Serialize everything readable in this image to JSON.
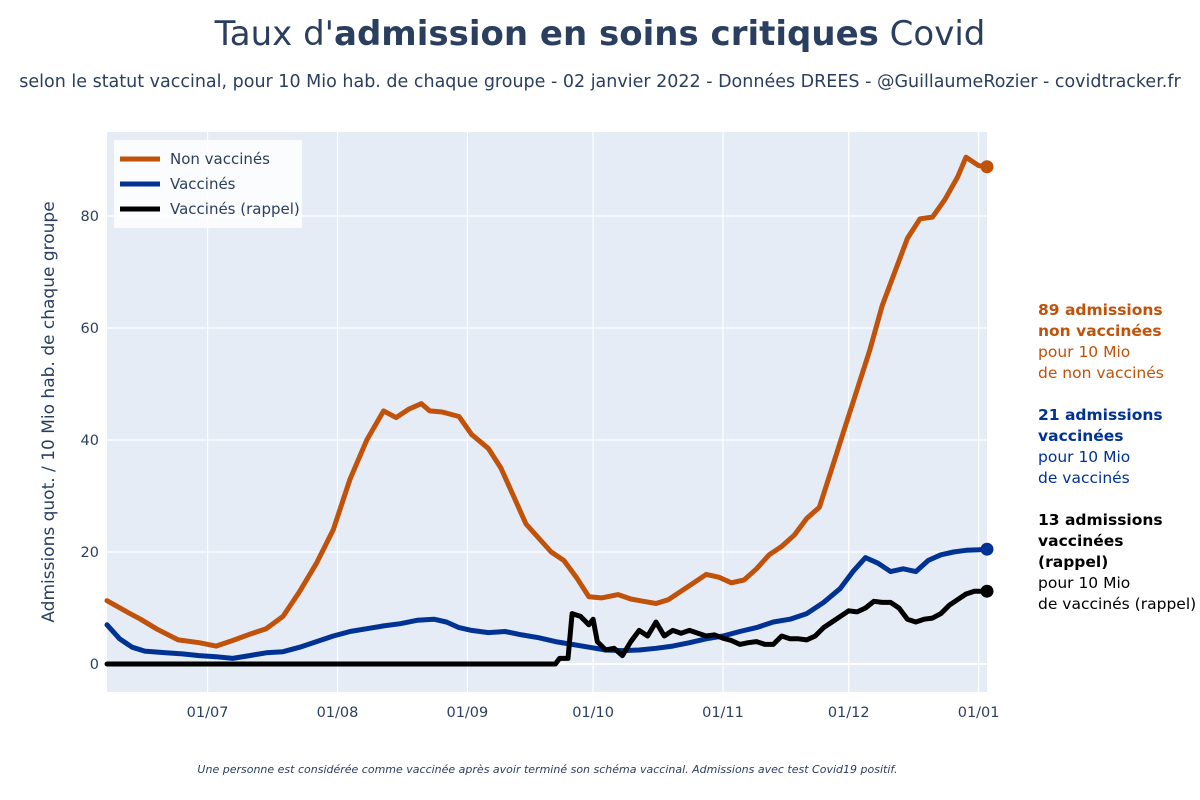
{
  "title_prefix": "Taux d'",
  "title_bold": "admission en soins critiques",
  "title_suffix": " Covid",
  "subtitle": "selon le statut vaccinal, pour 10 Mio hab. de chaque groupe - 02 janvier 2022 - Données DREES - @GuillaumeRozier - covidtracker.fr",
  "footnote": "Une personne est considérée comme vaccinée après avoir terminé son schéma vaccinal. Admissions avec test Covid19 positif.",
  "annotations": [
    {
      "bold1": "89 admissions",
      "bold2": "non vaccinées",
      "line1": "pour 10 Mio",
      "line2": "de non vaccinés",
      "color": "#c0520a"
    },
    {
      "bold1": "21 admissions",
      "bold2": "vaccinées",
      "line1": "pour 10 Mio",
      "line2": "de vaccinés",
      "color": "#003293"
    },
    {
      "bold1": "13 admissions",
      "bold2": "vaccinées (rappel)",
      "line1": "pour 10 Mio",
      "line2": "de vaccinés (rappel)",
      "color": "#000000"
    }
  ],
  "chart_data": {
    "type": "line",
    "title": "Taux d'admission en soins critiques Covid",
    "xlabel": "",
    "ylabel": "Admissions quot. / 10 Mio hab. de chaque groupe",
    "x_unit": "days since 2021-06-07",
    "xlim": [
      0,
      210
    ],
    "ylim": [
      -5,
      95
    ],
    "yticks": [
      0,
      20,
      40,
      60,
      80
    ],
    "xticks": [
      {
        "x": 24,
        "label": "01/07"
      },
      {
        "x": 55,
        "label": "01/08"
      },
      {
        "x": 86,
        "label": "01/09"
      },
      {
        "x": 116,
        "label": "01/10"
      },
      {
        "x": 147,
        "label": "01/11"
      },
      {
        "x": 177,
        "label": "01/12"
      },
      {
        "x": 208,
        "label": "01/01"
      }
    ],
    "legend": {
      "position": "top-left",
      "entries": [
        "Non vaccinés",
        "Vaccinés",
        "Vaccinés (rappel)"
      ]
    },
    "series": [
      {
        "name": "Non vaccinés",
        "color": "#c0520a",
        "points": [
          [
            0,
            11.3
          ],
          [
            5,
            9.2
          ],
          [
            8,
            8
          ],
          [
            12,
            6.2
          ],
          [
            17,
            4.3
          ],
          [
            22,
            3.8
          ],
          [
            26,
            3.2
          ],
          [
            30,
            4.2
          ],
          [
            34,
            5.3
          ],
          [
            38,
            6.3
          ],
          [
            42,
            8.5
          ],
          [
            46,
            13
          ],
          [
            50,
            18
          ],
          [
            54,
            24
          ],
          [
            58,
            33
          ],
          [
            62,
            40
          ],
          [
            66,
            45.2
          ],
          [
            69,
            44
          ],
          [
            72,
            45.5
          ],
          [
            75,
            46.5
          ],
          [
            77,
            45.2
          ],
          [
            80,
            45
          ],
          [
            84,
            44.2
          ],
          [
            87,
            41
          ],
          [
            91,
            38.5
          ],
          [
            94,
            35
          ],
          [
            97,
            30
          ],
          [
            100,
            25
          ],
          [
            103,
            22.5
          ],
          [
            106,
            20
          ],
          [
            109,
            18.5
          ],
          [
            112,
            15.5
          ],
          [
            115,
            12
          ],
          [
            118,
            11.8
          ],
          [
            122,
            12.4
          ],
          [
            125,
            11.6
          ],
          [
            128,
            11.2
          ],
          [
            131,
            10.8
          ],
          [
            134,
            11.5
          ],
          [
            137,
            13
          ],
          [
            140,
            14.5
          ],
          [
            143,
            16
          ],
          [
            146,
            15.5
          ],
          [
            149,
            14.5
          ],
          [
            152,
            15
          ],
          [
            155,
            17
          ],
          [
            158,
            19.5
          ],
          [
            161,
            21
          ],
          [
            164,
            23
          ],
          [
            167,
            26
          ],
          [
            170,
            28
          ],
          [
            173,
            35
          ],
          [
            176,
            42
          ],
          [
            179,
            49
          ],
          [
            182,
            56
          ],
          [
            185,
            64
          ],
          [
            188,
            70
          ],
          [
            191,
            76
          ],
          [
            194,
            79.5
          ],
          [
            197,
            79.8
          ],
          [
            200,
            83
          ],
          [
            203,
            87
          ],
          [
            205,
            90.5
          ],
          [
            207,
            89.5
          ],
          [
            208,
            89
          ],
          [
            210,
            88.8
          ]
        ]
      },
      {
        "name": "Vaccinés",
        "color": "#003293",
        "points": [
          [
            0,
            7
          ],
          [
            3,
            4.5
          ],
          [
            6,
            3
          ],
          [
            9,
            2.3
          ],
          [
            14,
            2
          ],
          [
            18,
            1.8
          ],
          [
            22,
            1.5
          ],
          [
            26,
            1.3
          ],
          [
            30,
            1
          ],
          [
            34,
            1.5
          ],
          [
            38,
            2
          ],
          [
            42,
            2.2
          ],
          [
            46,
            3
          ],
          [
            50,
            4
          ],
          [
            54,
            5
          ],
          [
            58,
            5.8
          ],
          [
            62,
            6.3
          ],
          [
            66,
            6.8
          ],
          [
            70,
            7.2
          ],
          [
            74,
            7.8
          ],
          [
            78,
            8
          ],
          [
            81,
            7.5
          ],
          [
            84,
            6.5
          ],
          [
            87,
            6
          ],
          [
            91,
            5.6
          ],
          [
            95,
            5.8
          ],
          [
            99,
            5.2
          ],
          [
            103,
            4.7
          ],
          [
            107,
            4
          ],
          [
            111,
            3.5
          ],
          [
            115,
            3
          ],
          [
            119,
            2.5
          ],
          [
            123,
            2.4
          ],
          [
            127,
            2.5
          ],
          [
            131,
            2.8
          ],
          [
            135,
            3.2
          ],
          [
            139,
            3.8
          ],
          [
            143,
            4.5
          ],
          [
            147,
            5
          ],
          [
            151,
            5.8
          ],
          [
            155,
            6.5
          ],
          [
            159,
            7.5
          ],
          [
            163,
            8
          ],
          [
            167,
            9
          ],
          [
            171,
            11
          ],
          [
            175,
            13.5
          ],
          [
            178,
            16.5
          ],
          [
            181,
            19
          ],
          [
            184,
            18
          ],
          [
            187,
            16.5
          ],
          [
            190,
            17
          ],
          [
            193,
            16.5
          ],
          [
            196,
            18.5
          ],
          [
            199,
            19.5
          ],
          [
            202,
            20
          ],
          [
            205,
            20.3
          ],
          [
            208,
            20.4
          ],
          [
            210,
            20.5
          ]
        ]
      },
      {
        "name": "Vaccinés (rappel)",
        "color": "#000000",
        "points": [
          [
            0,
            0
          ],
          [
            107,
            0
          ],
          [
            108,
            1
          ],
          [
            110,
            1
          ],
          [
            111,
            9
          ],
          [
            113,
            8.5
          ],
          [
            115,
            7
          ],
          [
            116,
            8
          ],
          [
            117,
            4
          ],
          [
            119,
            2.5
          ],
          [
            121,
            2.8
          ],
          [
            123,
            1.5
          ],
          [
            125,
            4
          ],
          [
            127,
            6
          ],
          [
            129,
            5
          ],
          [
            131,
            7.5
          ],
          [
            133,
            5
          ],
          [
            135,
            6
          ],
          [
            137,
            5.5
          ],
          [
            139,
            6
          ],
          [
            141,
            5.5
          ],
          [
            143,
            5
          ],
          [
            145,
            5.2
          ],
          [
            147,
            4.6
          ],
          [
            149,
            4.2
          ],
          [
            151,
            3.5
          ],
          [
            153,
            3.8
          ],
          [
            155,
            4
          ],
          [
            157,
            3.5
          ],
          [
            159,
            3.5
          ],
          [
            161,
            5
          ],
          [
            163,
            4.5
          ],
          [
            165,
            4.5
          ],
          [
            167,
            4.3
          ],
          [
            169,
            5
          ],
          [
            171,
            6.5
          ],
          [
            173,
            7.5
          ],
          [
            175,
            8.5
          ],
          [
            177,
            9.5
          ],
          [
            179,
            9.3
          ],
          [
            181,
            10
          ],
          [
            183,
            11.2
          ],
          [
            185,
            11
          ],
          [
            187,
            11
          ],
          [
            189,
            10
          ],
          [
            191,
            8
          ],
          [
            193,
            7.5
          ],
          [
            195,
            8
          ],
          [
            197,
            8.2
          ],
          [
            199,
            9
          ],
          [
            201,
            10.5
          ],
          [
            203,
            11.5
          ],
          [
            205,
            12.5
          ],
          [
            207,
            13
          ],
          [
            210,
            13
          ]
        ]
      }
    ],
    "endpoints": [
      {
        "series": "Non vaccinés",
        "x": 210,
        "y": 88.8
      },
      {
        "series": "Vaccinés",
        "x": 210,
        "y": 20.5
      },
      {
        "series": "Vaccinés (rappel)",
        "x": 210,
        "y": 13
      }
    ]
  }
}
